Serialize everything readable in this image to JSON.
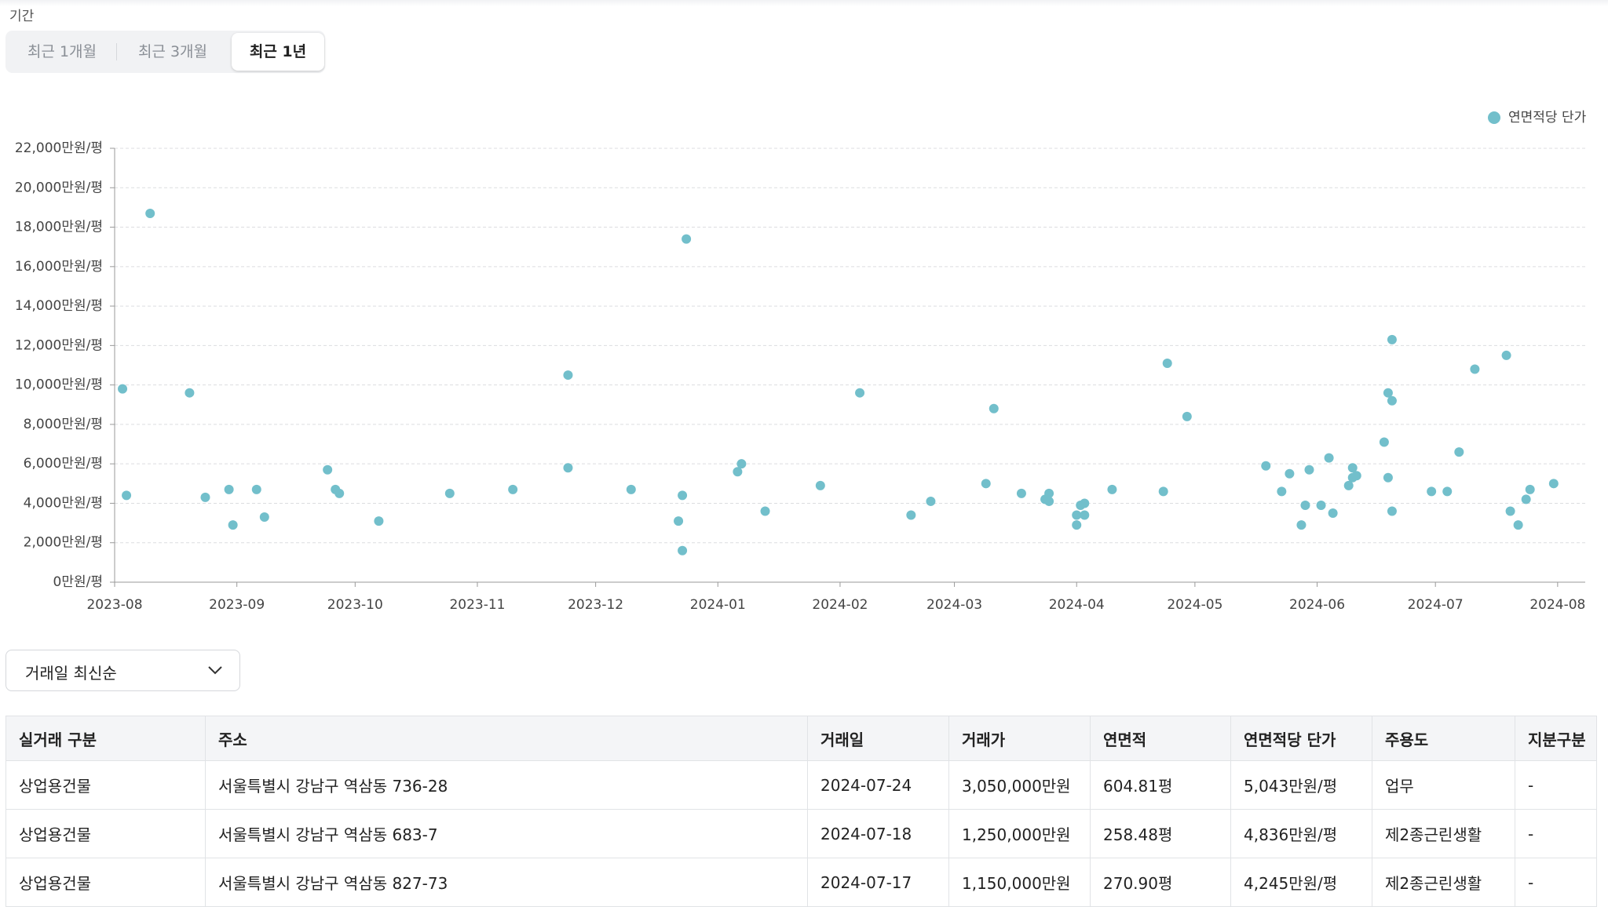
{
  "filter": {
    "label": "기간",
    "options": [
      "최근 1개월",
      "최근 3개월",
      "최근 1년"
    ],
    "active": 2
  },
  "chart_data": {
    "type": "scatter",
    "xlim": [
      "2023-08-01",
      "2024-08-08"
    ],
    "xticks": [
      "2023-08",
      "2023-09",
      "2023-10",
      "2023-11",
      "2023-12",
      "2024-01",
      "2024-02",
      "2024-03",
      "2024-04",
      "2024-05",
      "2024-06",
      "2024-07",
      "2024-08"
    ],
    "ylim": [
      0,
      22000
    ],
    "yticks": [
      {
        "value": 0,
        "label": "0만원/평"
      },
      {
        "value": 2000,
        "label": "2,000만원/평"
      },
      {
        "value": 4000,
        "label": "4,000만원/평"
      },
      {
        "value": 6000,
        "label": "6,000만원/평"
      },
      {
        "value": 8000,
        "label": "8,000만원/평"
      },
      {
        "value": 10000,
        "label": "10,000만원/평"
      },
      {
        "value": 12000,
        "label": "12,000만원/평"
      },
      {
        "value": 14000,
        "label": "14,000만원/평"
      },
      {
        "value": 16000,
        "label": "16,000만원/평"
      },
      {
        "value": 18000,
        "label": "18,000만원/평"
      },
      {
        "value": 20000,
        "label": "20,000만원/평"
      },
      {
        "value": 22000,
        "label": "22,000만원/평"
      }
    ],
    "grid": true,
    "legend": "top-right",
    "x": [
      "2023-08-03",
      "2023-08-04",
      "2023-08-10",
      "2023-08-20",
      "2023-08-24",
      "2023-08-30",
      "2023-08-31",
      "2023-09-06",
      "2023-09-08",
      "2023-09-24",
      "2023-09-26",
      "2023-09-27",
      "2023-10-07",
      "2023-10-25",
      "2023-11-10",
      "2023-11-24",
      "2023-11-24",
      "2023-12-10",
      "2023-12-22",
      "2023-12-23",
      "2023-12-23",
      "2023-12-24",
      "2024-01-06",
      "2024-01-07",
      "2024-01-13",
      "2024-01-27",
      "2024-02-06",
      "2024-02-19",
      "2024-02-24",
      "2024-03-09",
      "2024-03-11",
      "2024-03-18",
      "2024-03-24",
      "2024-03-25",
      "2024-03-25",
      "2024-04-01",
      "2024-04-01",
      "2024-04-02",
      "2024-04-03",
      "2024-04-03",
      "2024-04-10",
      "2024-04-23",
      "2024-04-24",
      "2024-04-29",
      "2024-05-19",
      "2024-05-23",
      "2024-05-25",
      "2024-05-28",
      "2024-05-29",
      "2024-05-30",
      "2024-06-02",
      "2024-06-04",
      "2024-06-05",
      "2024-06-09",
      "2024-06-10",
      "2024-06-10",
      "2024-06-11",
      "2024-06-18",
      "2024-06-19",
      "2024-06-19",
      "2024-06-20",
      "2024-06-20",
      "2024-06-20",
      "2024-06-30",
      "2024-07-04",
      "2024-07-07",
      "2024-07-11",
      "2024-07-19",
      "2024-07-20",
      "2024-07-22",
      "2024-07-24",
      "2024-07-25",
      "2024-07-31"
    ],
    "series": [
      {
        "name": "연면적당 단가",
        "color": "#72bfcb",
        "values": [
          9800,
          4400,
          18700,
          9600,
          4300,
          4700,
          2900,
          4700,
          3300,
          5700,
          4700,
          4500,
          3100,
          4500,
          4700,
          10500,
          5800,
          4700,
          3100,
          4400,
          1600,
          17400,
          5600,
          6000,
          3600,
          4900,
          9600,
          3400,
          4100,
          5000,
          8800,
          4500,
          4200,
          4500,
          4100,
          2900,
          3400,
          3900,
          4000,
          3400,
          4700,
          4600,
          11100,
          8400,
          5900,
          4600,
          5500,
          2900,
          3900,
          5700,
          3900,
          6300,
          3500,
          4900,
          5800,
          5300,
          5400,
          7100,
          9600,
          5300,
          12300,
          9200,
          3600,
          4600,
          4600,
          6600,
          10800,
          11500,
          3600,
          2900,
          4200,
          4700,
          5000
        ]
      }
    ]
  },
  "sort": {
    "label": "거래일 최신순"
  },
  "table": {
    "headers": [
      "실거래 구분",
      "주소",
      "거래일",
      "거래가",
      "연면적",
      "연면적당 단가",
      "주용도",
      "지분구분"
    ],
    "rows": [
      [
        "상업용건물",
        "서울특별시 강남구 역삼동 736-28",
        "2024-07-24",
        "3,050,000만원",
        "604.81평",
        "5,043만원/평",
        "업무",
        "-"
      ],
      [
        "상업용건물",
        "서울특별시 강남구 역삼동 683-7",
        "2024-07-18",
        "1,250,000만원",
        "258.48평",
        "4,836만원/평",
        "제2종근린생활",
        "-"
      ],
      [
        "상업용건물",
        "서울특별시 강남구 역삼동 827-73",
        "2024-07-17",
        "1,150,000만원",
        "270.90평",
        "4,245만원/평",
        "제2종근린생활",
        "-"
      ]
    ]
  }
}
